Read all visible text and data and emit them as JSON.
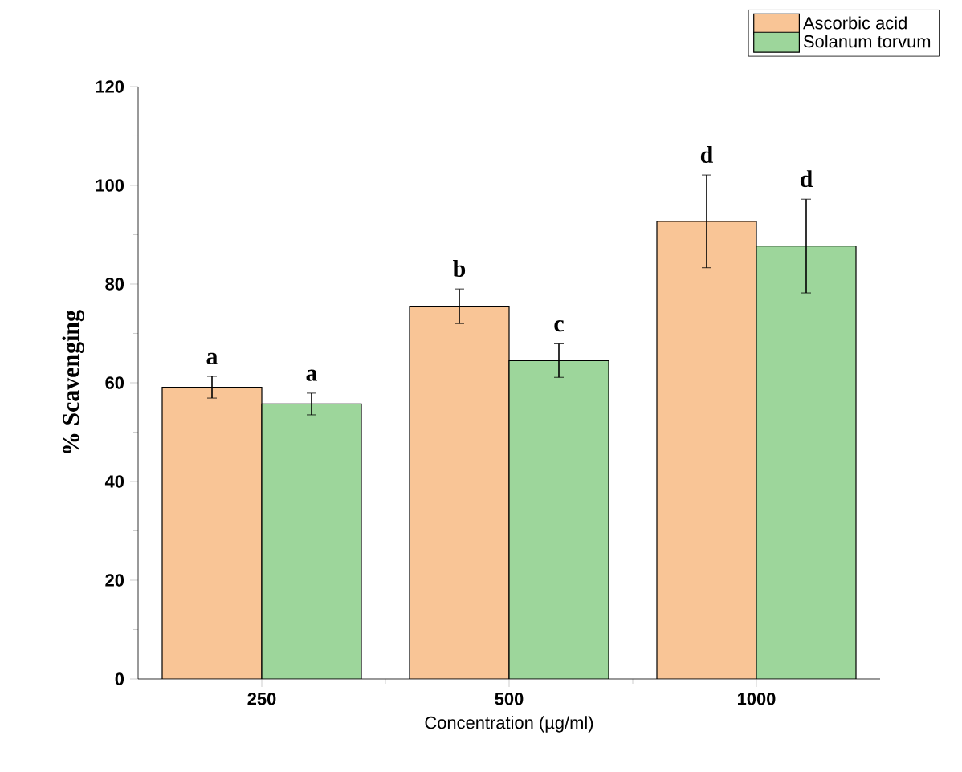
{
  "chart_data": {
    "type": "bar",
    "xlabel": "Concentration (µg/ml)",
    "ylabel": "% Scavenging",
    "categories": [
      "250",
      "500",
      "1000"
    ],
    "series": [
      {
        "name": "Ascorbic acid",
        "color": "#f9c596",
        "values": [
          59.1,
          75.5,
          92.7
        ],
        "errors": [
          2.2,
          3.5,
          9.4
        ]
      },
      {
        "name": "Solanum torvum",
        "color": "#9dd69b",
        "values": [
          55.7,
          64.5,
          87.7
        ],
        "errors": [
          2.2,
          3.4,
          9.5
        ]
      }
    ],
    "ylim": [
      0,
      120
    ],
    "yticks": [
      0,
      20,
      40,
      60,
      80,
      100,
      120
    ],
    "legend": "top right",
    "grid": false,
    "annotations": [
      "a",
      "a",
      "b",
      "c",
      "d",
      "d"
    ]
  }
}
